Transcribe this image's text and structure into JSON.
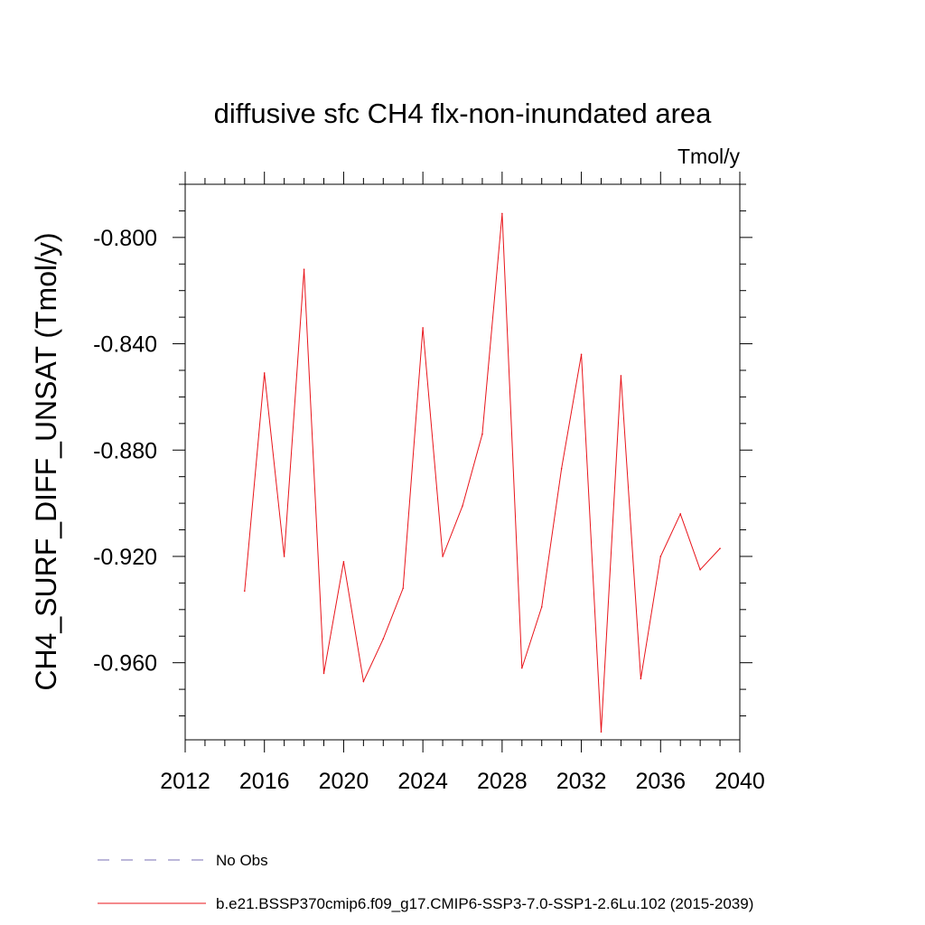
{
  "chart_data": {
    "type": "line",
    "title": "diffusive sfc CH4 flx-non-inundated area",
    "units": "Tmol/y",
    "ylabel": "CH4_SURF_DIFF_UNSAT  (Tmol/y)",
    "xlabel": "",
    "xlim": [
      2012,
      2040
    ],
    "ylim": [
      -0.989,
      -0.78
    ],
    "x_ticks": [
      2012,
      2016,
      2020,
      2024,
      2028,
      2032,
      2036,
      2040
    ],
    "x_tick_labels": [
      "2012",
      "2016",
      "2020",
      "2024",
      "2028",
      "2032",
      "2036",
      "2040"
    ],
    "y_ticks": [
      -0.8,
      -0.84,
      -0.88,
      -0.92,
      -0.96
    ],
    "y_tick_labels": [
      "-0.800",
      "-0.840",
      "-0.880",
      "-0.920",
      "-0.960"
    ],
    "series": [
      {
        "name": "b.e21.BSSP370cmip6.f09_g17.CMIP6-SSP3-7.0-SSP1-2.6Lu.102 (2015-2039)",
        "color": "#e8141a",
        "style": "solid",
        "x": [
          2015,
          2016,
          2017,
          2018,
          2019,
          2020,
          2021,
          2022,
          2023,
          2024,
          2025,
          2026,
          2027,
          2028,
          2029,
          2030,
          2031,
          2032,
          2033,
          2034,
          2035,
          2036,
          2037,
          2038,
          2039
        ],
        "y": [
          -0.933,
          -0.851,
          -0.92,
          -0.812,
          -0.964,
          -0.922,
          -0.967,
          -0.951,
          -0.932,
          -0.834,
          -0.92,
          -0.901,
          -0.874,
          -0.791,
          -0.962,
          -0.939,
          -0.887,
          -0.844,
          -0.986,
          -0.852,
          -0.966,
          -0.92,
          -0.904,
          -0.925,
          -0.917
        ]
      }
    ],
    "legend": [
      {
        "label": "No Obs",
        "color": "#7a6fb3",
        "style": "dashed"
      },
      {
        "label": "b.e21.BSSP370cmip6.f09_g17.CMIP6-SSP3-7.0-SSP1-2.6Lu.102 (2015-2039)",
        "color": "#e8141a",
        "style": "solid"
      }
    ],
    "legend_position": "bottom",
    "grid": false
  }
}
